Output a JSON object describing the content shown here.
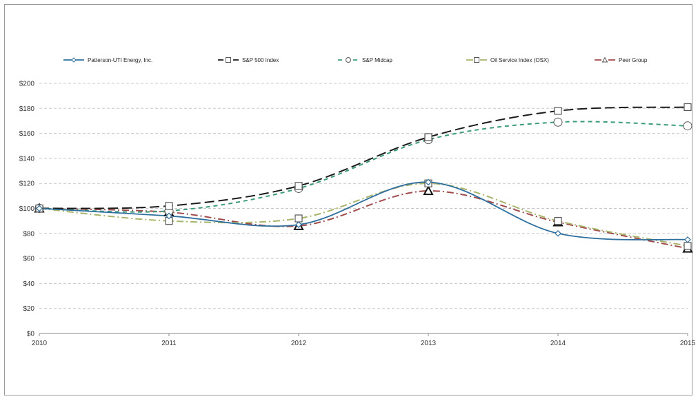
{
  "chart_data": {
    "type": "line",
    "title": "",
    "xlabel": "",
    "ylabel": "",
    "x": [
      "2010",
      "2011",
      "2012",
      "2013",
      "2014",
      "2015"
    ],
    "ylim": [
      0,
      200
    ],
    "y_ticks": [
      "$0",
      "$20",
      "$40",
      "$60",
      "$80",
      "$100",
      "$120",
      "$140",
      "$160",
      "$180",
      "$200"
    ],
    "grid": true,
    "legend_position": "top",
    "series": [
      {
        "name": "Patterson-UTI Energy, Inc.",
        "values": [
          100,
          94,
          87,
          121,
          80,
          75
        ],
        "color": "#2e6f9e",
        "dash": "solid",
        "marker": "diamond"
      },
      {
        "name": "S&P 500 Index",
        "values": [
          100,
          102,
          118,
          157,
          178,
          181
        ],
        "color": "#1a1a1a",
        "dash": "long-dash",
        "marker": "square"
      },
      {
        "name": "S&P Midcap",
        "values": [
          100,
          98,
          116,
          155,
          169,
          166
        ],
        "color": "#3a9a7a",
        "dash": "dash",
        "marker": "circle"
      },
      {
        "name": "Oil Service Index (OSX)",
        "values": [
          100,
          90,
          92,
          120,
          90,
          70
        ],
        "color": "#a8b46a",
        "dash": "dash-dot",
        "marker": "square"
      },
      {
        "name": "Peer Group",
        "values": [
          100,
          97,
          86,
          114,
          89,
          68
        ],
        "color": "#a04a4a",
        "dash": "dash-dot",
        "marker": "triangle"
      }
    ]
  }
}
